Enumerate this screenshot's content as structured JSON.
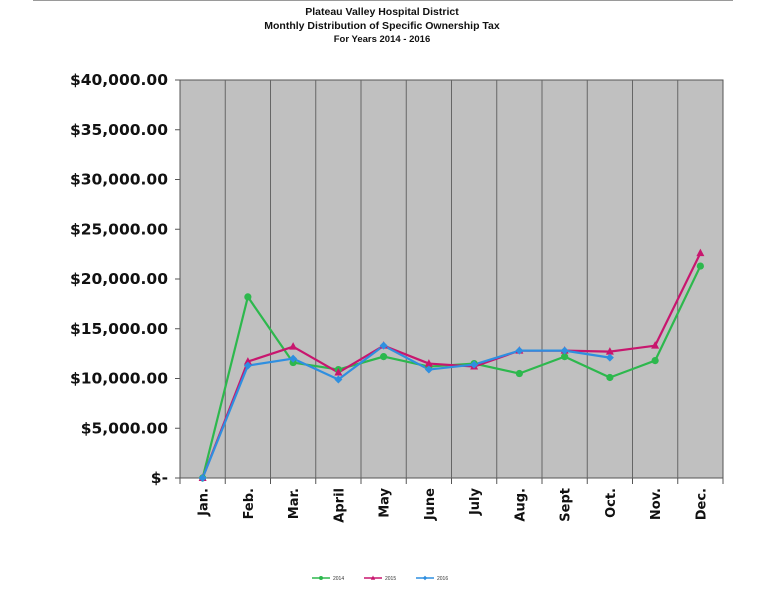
{
  "chart_data": {
    "type": "line",
    "title": "Plateau Valley Hospital District",
    "subtitle": "Monthly Distribution of Specific Ownership Tax",
    "subtitle2": "For Years 2014 - 2016",
    "xlabel": "",
    "ylabel": "",
    "categories": [
      "Jan.",
      "Feb.",
      "Mar.",
      "April",
      "May",
      "June",
      "July",
      "Aug.",
      "Sept",
      "Oct.",
      "Nov.",
      "Dec."
    ],
    "ylim": [
      0,
      40000
    ],
    "ytick_values": [
      0,
      5000,
      10000,
      15000,
      20000,
      25000,
      30000,
      35000,
      40000
    ],
    "ytick_labels": [
      "$-",
      "$5,000.00",
      "$10,000.00",
      "$15,000.00",
      "$20,000.00",
      "$25,000.00",
      "$30,000.00",
      "$35,000.00",
      "$40,000.00"
    ],
    "grid": "vertical",
    "legend_position": "bottom",
    "plot_background": "#c0c0c0",
    "series": [
      {
        "name": "2014",
        "color": "#2db84d",
        "marker": "circle",
        "values": [
          0,
          18200,
          11600,
          10900,
          12200,
          11200,
          11500,
          10500,
          12200,
          10100,
          11800,
          21300
        ]
      },
      {
        "name": "2015",
        "color": "#c8166e",
        "marker": "triangle",
        "values": [
          0,
          11700,
          13200,
          10600,
          13300,
          11500,
          11200,
          12800,
          12800,
          12700,
          13300,
          22600
        ]
      },
      {
        "name": "2016",
        "color": "#2f8fe0",
        "marker": "diamond",
        "values": [
          0,
          11300,
          12000,
          9900,
          13300,
          10900,
          11400,
          12800,
          12800,
          12100,
          null,
          null
        ]
      }
    ]
  }
}
